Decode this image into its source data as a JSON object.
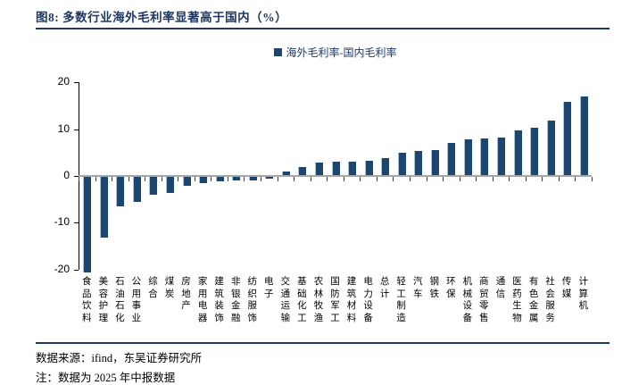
{
  "figure": {
    "title": "图8:  多数行业海外毛利率显著高于国内（%）"
  },
  "footer": {
    "source": "数据来源：ifind，东吴证券研究所",
    "note": "注：数据为 2025 年中报数据"
  },
  "colors": {
    "bar": "#1A4670",
    "bar_highlight": "#AEC6DC",
    "accent_navy": "#1F3864",
    "zero_line": "#A6A6A6",
    "axis": "#000000",
    "tick": "#404040"
  },
  "chart_data": {
    "type": "bar",
    "title": "图8: 多数行业海外毛利率显著高于国内（%）",
    "legend": [
      "海外毛利率-国内毛利率"
    ],
    "legend_position": "top-center",
    "grid": false,
    "ylim": [
      -20,
      20
    ],
    "yticks": [
      20,
      10,
      0,
      -10,
      -20
    ],
    "xlabel": "",
    "ylabel": "",
    "categories": [
      "食品饮料",
      "美容护理",
      "石油石化",
      "公用事业",
      "综合",
      "煤炭",
      "房地产",
      "家用电器",
      "建筑装饰",
      "非银金融",
      "纺织服饰",
      "电子",
      "交通运输",
      "基础化工",
      "农林牧渔",
      "国防军工",
      "建筑材料",
      "电力设备",
      "总计",
      "轻工制造",
      "汽车",
      "钢铁",
      "环保",
      "机械设备",
      "商贸零售",
      "通信",
      "医药生物",
      "有色金属",
      "社会服务",
      "传媒",
      "计算机"
    ],
    "values": [
      -20.5,
      -13.0,
      -6.3,
      -5.3,
      -3.8,
      -3.5,
      -2.0,
      -1.3,
      -0.9,
      -0.8,
      -0.7,
      -0.3,
      1.0,
      2.0,
      2.8,
      3.0,
      3.1,
      3.3,
      3.9,
      5.0,
      5.3,
      5.5,
      7.0,
      7.9,
      8.0,
      8.2,
      9.8,
      10.4,
      11.8,
      15.8,
      17.0
    ]
  }
}
